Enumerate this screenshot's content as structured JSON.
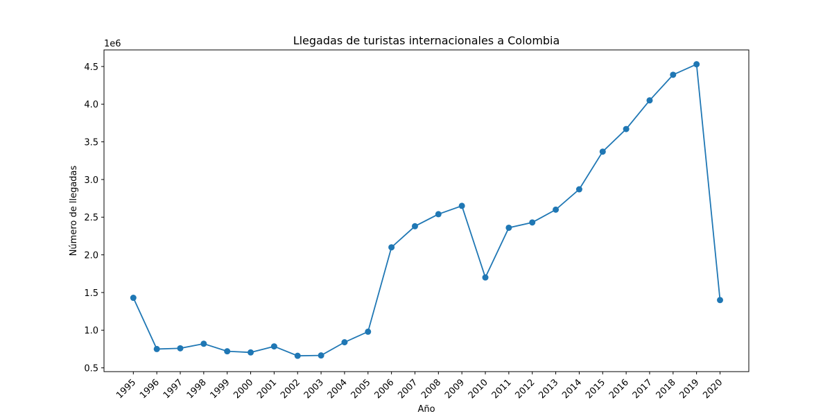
{
  "chart_data": {
    "type": "line",
    "title": "Llegadas de turistas internacionales a Colombia",
    "xlabel": "Año",
    "ylabel": "Número de llegadas",
    "y_offset_label": "1e6",
    "x": [
      "1995",
      "1996",
      "1997",
      "1998",
      "1999",
      "2000",
      "2001",
      "2002",
      "2003",
      "2004",
      "2005",
      "2006",
      "2007",
      "2008",
      "2009",
      "2010",
      "2011",
      "2012",
      "2013",
      "2014",
      "2015",
      "2016",
      "2017",
      "2018",
      "2019",
      "2020"
    ],
    "series": [
      {
        "values": [
          1430000,
          750000,
          760000,
          820000,
          720000,
          705000,
          785000,
          660000,
          665000,
          840000,
          980000,
          2100000,
          2380000,
          2540000,
          2650000,
          1700000,
          2360000,
          2430000,
          2600000,
          2870000,
          3370000,
          3670000,
          4050000,
          4390000,
          4530000,
          1400000
        ],
        "color": "#1f77b4"
      }
    ],
    "yticks": [
      "0.5",
      "1.0",
      "1.5",
      "2.0",
      "2.5",
      "3.0",
      "3.5",
      "4.0",
      "4.5"
    ],
    "ytick_values": [
      500000,
      1000000,
      1500000,
      2000000,
      2500000,
      3000000,
      3500000,
      4000000,
      4500000
    ],
    "ylim": [
      450000,
      4720000
    ],
    "grid": false,
    "legend": "none"
  }
}
